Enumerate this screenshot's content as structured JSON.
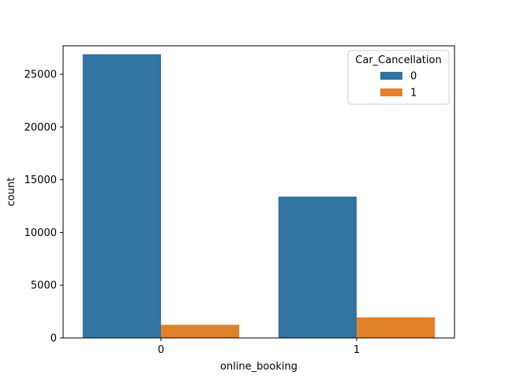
{
  "chart_data": {
    "type": "bar",
    "categories": [
      "0",
      "1"
    ],
    "xlabel": "online_booking",
    "ylabel": "count",
    "ylim": [
      0,
      27700
    ],
    "yticks": [
      0,
      5000,
      10000,
      15000,
      20000,
      25000
    ],
    "grid": false,
    "legend": {
      "title": "Car_Cancellation",
      "placement": "top-right"
    },
    "series": [
      {
        "name": "0",
        "values": [
          26900,
          13400
        ],
        "color": "#3274a1"
      },
      {
        "name": "1",
        "values": [
          1250,
          1950
        ],
        "color": "#e1812c"
      }
    ]
  }
}
